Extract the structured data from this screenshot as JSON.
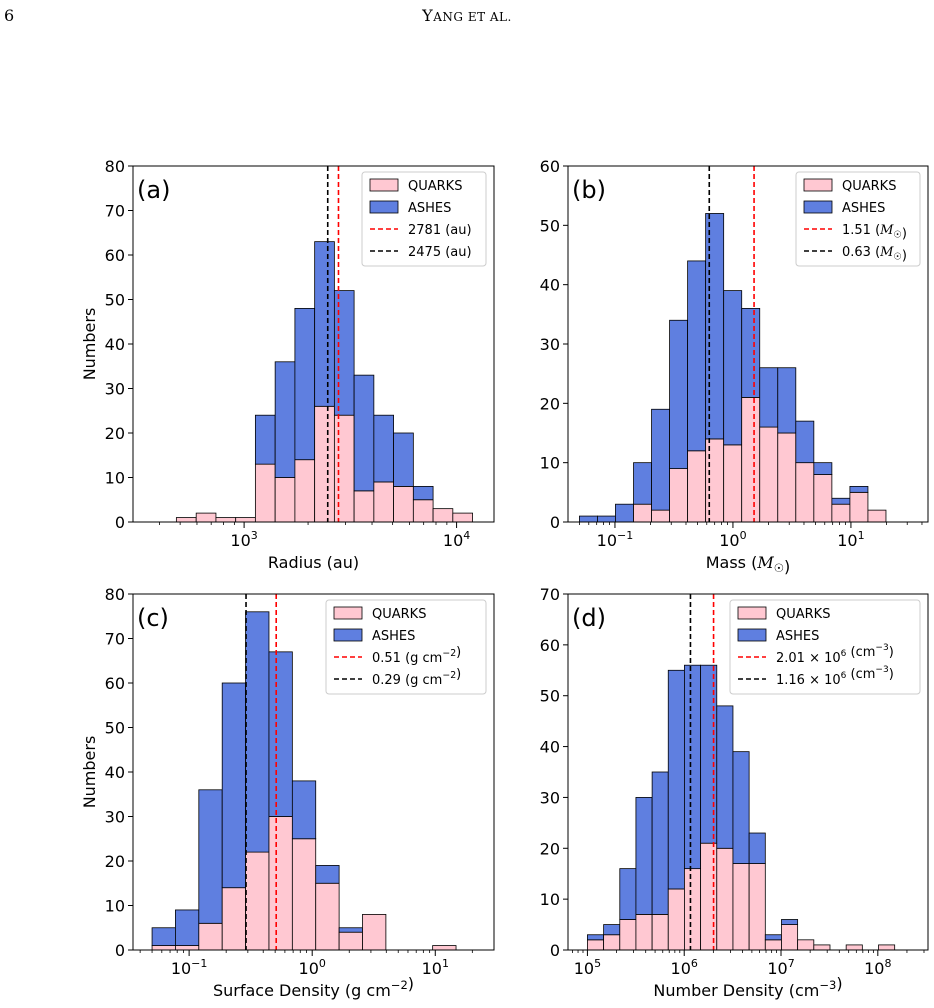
{
  "header": {
    "page_number": "6",
    "running_head_cap1": "Y",
    "running_head_sc1": "ang",
    "running_head_sc2": "et al."
  },
  "colors": {
    "quarks": "#ffc8d2",
    "ashes": "#5f7fe0",
    "median_red": "#ff0000",
    "median_black": "#000000"
  },
  "chart_data": [
    {
      "type": "bar",
      "panel_label": "(a)",
      "xlabel": "Radius (au)",
      "ylabel": "Numbers",
      "xscale": "log",
      "xlim": [
        300,
        15000
      ],
      "ylim": [
        0,
        80
      ],
      "yticks": [
        0,
        10,
        20,
        30,
        40,
        50,
        60,
        70,
        80
      ],
      "xticks": [
        {
          "value": 1000,
          "base": "10",
          "exp": "3"
        },
        {
          "value": 10000,
          "base": "10",
          "exp": "4"
        }
      ],
      "bin_edges": [
        480,
        595,
        737,
        913,
        1130,
        1400,
        1734,
        2148,
        2660,
        3294,
        4080,
        5053,
        6259,
        7752,
        9601,
        11892,
        14730
      ],
      "series": [
        {
          "name": "QUARKS",
          "counts": [
            1,
            2,
            1,
            1,
            13,
            10,
            14,
            26,
            24,
            7,
            9,
            8,
            5,
            3,
            2,
            0
          ]
        },
        {
          "name": "ASHES",
          "counts": [
            0,
            0,
            0,
            0,
            11,
            26,
            34,
            37,
            28,
            26,
            15,
            12,
            3,
            0,
            0,
            0
          ]
        }
      ],
      "vlines": [
        {
          "x": 2781,
          "color": "red",
          "label": "2781 (au)"
        },
        {
          "x": 2475,
          "color": "black",
          "label": "2475 (au)"
        }
      ],
      "legend_position": "top-right"
    },
    {
      "type": "bar",
      "panel_label": "(b)",
      "xlabel": "Mass (M☉)",
      "ylabel": "",
      "xscale": "log",
      "xlim": [
        0.04,
        45
      ],
      "ylim": [
        0,
        60
      ],
      "yticks": [
        0,
        10,
        20,
        30,
        40,
        50,
        60
      ],
      "xticks": [
        {
          "value": 0.1,
          "base": "10",
          "exp": "−1"
        },
        {
          "value": 1,
          "base": "10",
          "exp": "0"
        },
        {
          "value": 10,
          "base": "10",
          "exp": "1"
        }
      ],
      "bin_edges": [
        0.05,
        0.0711,
        0.101,
        0.1437,
        0.2043,
        0.2904,
        0.4129,
        0.587,
        0.8346,
        1.1866,
        1.6871,
        2.3987,
        3.4104,
        4.8489,
        6.8941,
        9.8018,
        13.936,
        19.814
      ],
      "series": [
        {
          "name": "QUARKS",
          "counts": [
            0,
            0,
            0,
            3,
            2,
            9,
            12,
            14,
            13,
            21,
            16,
            15,
            10,
            8,
            3,
            5,
            2
          ]
        },
        {
          "name": "ASHES",
          "counts": [
            1,
            1,
            3,
            7,
            17,
            25,
            32,
            38,
            26,
            15,
            10,
            11,
            7,
            2,
            1,
            1,
            0
          ]
        }
      ],
      "vlines": [
        {
          "x": 1.51,
          "color": "red",
          "label": "1.51 (M☉)"
        },
        {
          "x": 0.63,
          "color": "black",
          "label": "0.63 (M☉)"
        }
      ],
      "legend_position": "top-right"
    },
    {
      "type": "bar",
      "panel_label": "(c)",
      "xlabel": "Surface Density (g cm⁻²)",
      "ylabel": "Numbers",
      "xscale": "log",
      "xlim": [
        0.035,
        30
      ],
      "ylim": [
        0,
        80
      ],
      "yticks": [
        0,
        10,
        20,
        30,
        40,
        50,
        60,
        70,
        80
      ],
      "xticks": [
        {
          "value": 0.1,
          "base": "10",
          "exp": "−1"
        },
        {
          "value": 1,
          "base": "10",
          "exp": "0"
        },
        {
          "value": 10,
          "base": "10",
          "exp": "1"
        }
      ],
      "bin_edges": [
        0.05,
        0.0774,
        0.1199,
        0.1857,
        0.2876,
        0.4454,
        0.6899,
        1.0684,
        1.6548,
        2.5629,
        3.9693,
        6.1475,
        9.5209,
        14.745
      ],
      "series": [
        {
          "name": "QUARKS",
          "counts": [
            1,
            1,
            6,
            14,
            22,
            30,
            25,
            15,
            4,
            8,
            0,
            0,
            1
          ]
        },
        {
          "name": "ASHES",
          "counts": [
            4,
            8,
            30,
            46,
            54,
            37,
            13,
            4,
            1,
            0,
            0,
            0,
            0
          ]
        }
      ],
      "vlines": [
        {
          "x": 0.51,
          "color": "red",
          "label": "0.51 (g cm⁻²)"
        },
        {
          "x": 0.29,
          "color": "black",
          "label": "0.29 (g cm⁻²)"
        }
      ],
      "legend_position": "top-right"
    },
    {
      "type": "bar",
      "panel_label": "(d)",
      "xlabel": "Number Density (cm⁻³)",
      "ylabel": "",
      "xscale": "log",
      "xlim": [
        63000,
        330000000
      ],
      "ylim": [
        0,
        70
      ],
      "yticks": [
        0,
        10,
        20,
        30,
        40,
        50,
        60,
        70
      ],
      "xticks": [
        {
          "value": 100000,
          "base": "10",
          "exp": "5"
        },
        {
          "value": 1000000,
          "base": "10",
          "exp": "6"
        },
        {
          "value": 10000000,
          "base": "10",
          "exp": "7"
        },
        {
          "value": 100000000,
          "base": "10",
          "exp": "8"
        }
      ],
      "bin_edges": [
        100000,
        147000,
        216000,
        317000,
        466000,
        684000,
        1005000,
        1477000,
        2170000,
        3188000,
        4684000,
        6881000,
        10110000,
        14850000,
        21820000,
        32060000,
        47100000,
        69200000,
        101700000,
        149400000,
        219500000
      ],
      "series": [
        {
          "name": "QUARKS",
          "counts": [
            2,
            3,
            6,
            7,
            7,
            12,
            16,
            21,
            20,
            17,
            17,
            2,
            5,
            2,
            1,
            0,
            1,
            0,
            1,
            0
          ]
        },
        {
          "name": "ASHES",
          "counts": [
            1,
            2,
            10,
            23,
            28,
            43,
            40,
            35,
            28,
            22,
            6,
            1,
            1,
            0,
            0,
            0,
            0,
            0,
            0,
            0
          ]
        }
      ],
      "vlines": [
        {
          "x": 2010000,
          "color": "red",
          "label_mant": "2.01 × 10",
          "label_exp": "6",
          "label_unit": " (cm⁻³)"
        },
        {
          "x": 1160000,
          "color": "black",
          "label_mant": "1.16 × 10",
          "label_exp": "6",
          "label_unit": " (cm⁻³)"
        }
      ],
      "legend_position": "top-right"
    }
  ]
}
